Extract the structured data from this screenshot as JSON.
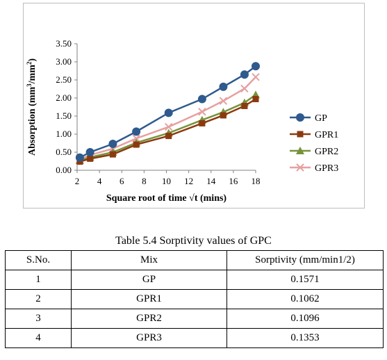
{
  "chart_data": {
    "type": "line",
    "title": "",
    "xlabel": "Square root of time √t (mins)",
    "ylabel_main": "Absorption (mm",
    "ylabel_sup1": "3",
    "ylabel_mid": "/mm",
    "ylabel_sup2": "2",
    "ylabel_end": ")",
    "xlim": [
      2,
      18
    ],
    "ylim": [
      0,
      3.5
    ],
    "x_ticks": [
      2,
      4,
      6,
      8,
      10,
      12,
      14,
      16,
      18
    ],
    "y_ticks": [
      "0.00",
      "0.50",
      "1.00",
      "1.50",
      "2.00",
      "2.50",
      "3.00",
      "3.50"
    ],
    "legend_position": "right",
    "series": [
      {
        "name": "GP",
        "color": "#2e5a8e",
        "marker": "circle",
        "x": [
          2.24,
          3.16,
          5.2,
          7.3,
          10.2,
          13.2,
          15.1,
          17.0,
          18.0
        ],
        "y": [
          0.35,
          0.5,
          0.73,
          1.07,
          1.59,
          1.97,
          2.31,
          2.65,
          2.88
        ]
      },
      {
        "name": "GPR1",
        "color": "#8b3a0f",
        "marker": "square",
        "x": [
          2.24,
          3.16,
          5.2,
          7.3,
          10.2,
          13.2,
          15.1,
          17.0,
          18.0
        ],
        "y": [
          0.24,
          0.32,
          0.44,
          0.71,
          0.95,
          1.3,
          1.52,
          1.78,
          1.97
        ]
      },
      {
        "name": "GPR2",
        "color": "#76933c",
        "marker": "triangle",
        "x": [
          2.24,
          3.16,
          5.2,
          7.3,
          10.2,
          13.2,
          15.1,
          17.0,
          18.0
        ],
        "y": [
          0.27,
          0.36,
          0.5,
          0.76,
          1.03,
          1.39,
          1.61,
          1.87,
          2.09
        ]
      },
      {
        "name": "GPR3",
        "color": "#e6a0a0",
        "marker": "x",
        "x": [
          2.24,
          3.16,
          5.2,
          7.3,
          10.2,
          13.2,
          15.1,
          17.0,
          18.0
        ],
        "y": [
          0.3,
          0.42,
          0.6,
          0.88,
          1.2,
          1.62,
          1.92,
          2.26,
          2.58
        ]
      }
    ]
  },
  "table": {
    "caption": "Table 5.4 Sorptivity values of GPC",
    "headers": [
      "S.No.",
      "Mix",
      "Sorptivity (mm/min1/2)"
    ],
    "rows": [
      [
        "1",
        "GP",
        "0.1571"
      ],
      [
        "2",
        "GPR1",
        "0.1062"
      ],
      [
        "3",
        "GPR2",
        "0.1096"
      ],
      [
        "4",
        "GPR3",
        "0.1353"
      ]
    ]
  }
}
